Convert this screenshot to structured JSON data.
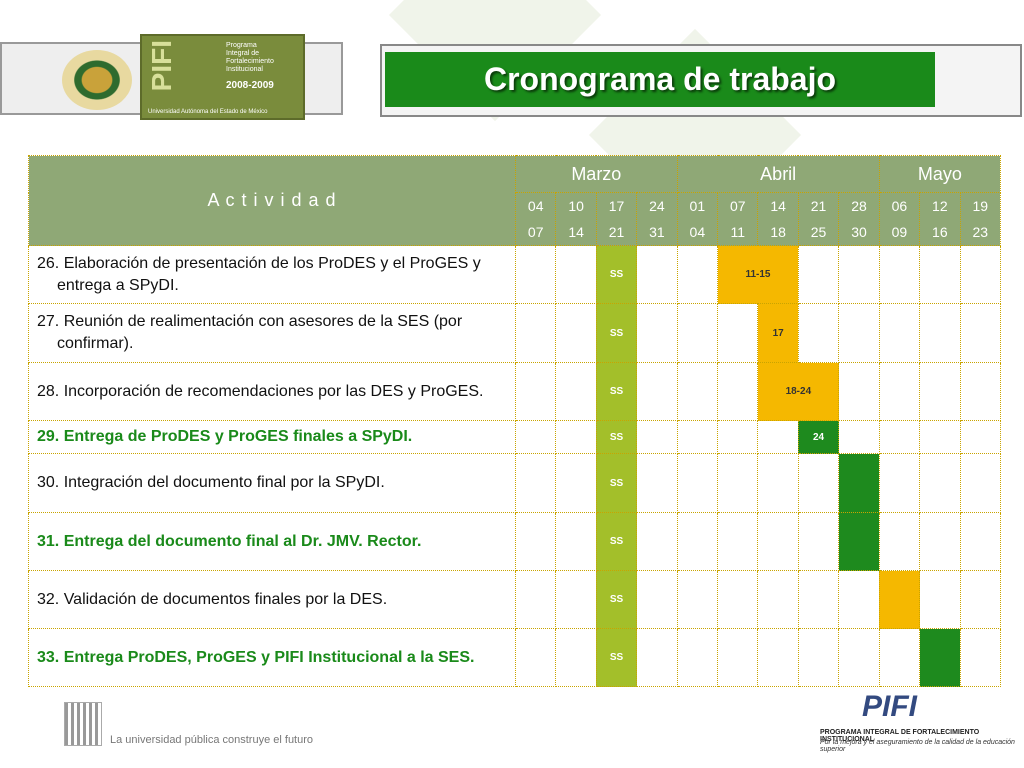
{
  "header": {
    "logo_text": "PIFI",
    "program_lines": [
      "Programa",
      "Integral de",
      "Fortalecimiento",
      "Institucional"
    ],
    "years": "2008-2009",
    "university": "Universidad Autónoma del Estado de México",
    "title": "Cronograma de trabajo"
  },
  "table": {
    "activity_header": "A c t i v i d a d",
    "months": [
      {
        "name": "Marzo",
        "weeks": [
          [
            "04",
            "07"
          ],
          [
            "10",
            "14"
          ],
          [
            "17",
            "21"
          ],
          [
            "24",
            "31"
          ]
        ]
      },
      {
        "name": "Abril",
        "weeks": [
          [
            "01",
            "04"
          ],
          [
            "07",
            "11"
          ],
          [
            "14",
            "18"
          ],
          [
            "21",
            "25"
          ],
          [
            "28",
            "30"
          ]
        ]
      },
      {
        "name": "Mayo",
        "weeks": [
          [
            "06",
            "09"
          ],
          [
            "12",
            "16"
          ],
          [
            "19",
            "23"
          ]
        ]
      }
    ],
    "rows": [
      {
        "activity": "26. Elaboración de presentación de los ProDES y el ProGES y entrega a SPyDI.",
        "highlight": false,
        "cells": [
          null,
          null,
          {
            "fill": "#a3bf2a",
            "label": "SS"
          },
          null,
          null,
          {
            "fill": "#f5b800",
            "label": "11-15",
            "span": 2
          },
          null,
          null,
          null,
          null,
          null
        ]
      },
      {
        "activity": "27. Reunión de realimentación con asesores de la SES (por confirmar).",
        "highlight": false,
        "cells": [
          null,
          null,
          {
            "fill": "#a3bf2a",
            "label": "SS"
          },
          null,
          null,
          null,
          {
            "fill": "#f5b800",
            "label": "17"
          },
          null,
          null,
          null,
          null,
          null
        ]
      },
      {
        "activity": "28. Incorporación de recomendaciones por las DES y ProGES.",
        "highlight": false,
        "cells": [
          null,
          null,
          {
            "fill": "#a3bf2a",
            "label": "SS"
          },
          null,
          null,
          null,
          {
            "fill": "#f5b800",
            "label": "18-24",
            "span": 2
          },
          null,
          null,
          null,
          null
        ]
      },
      {
        "activity": "29. Entrega de ProDES y ProGES finales a SPyDI.",
        "highlight": true,
        "cells": [
          null,
          null,
          {
            "fill": "#a3bf2a",
            "label": "SS"
          },
          null,
          null,
          null,
          null,
          {
            "fill": "#1e8a1e",
            "label": "24"
          },
          null,
          null,
          null,
          null
        ]
      },
      {
        "activity": "30. Integración del documento final por la SPyDI.",
        "highlight": false,
        "cells": [
          null,
          null,
          {
            "fill": "#a3bf2a",
            "label": "SS"
          },
          null,
          null,
          null,
          null,
          null,
          {
            "fill": "#1e8a1e"
          },
          null,
          null,
          null
        ]
      },
      {
        "activity": "31. Entrega del documento final al Dr. JMV. Rector.",
        "highlight": true,
        "cells": [
          null,
          null,
          {
            "fill": "#a3bf2a",
            "label": "SS"
          },
          null,
          null,
          null,
          null,
          null,
          {
            "fill": "#1e8a1e"
          },
          null,
          null,
          null
        ]
      },
      {
        "activity": "32. Validación de documentos finales por la DES.",
        "highlight": false,
        "cells": [
          null,
          null,
          {
            "fill": "#a3bf2a",
            "label": "SS"
          },
          null,
          null,
          null,
          null,
          null,
          null,
          {
            "fill": "#f5b800"
          },
          null,
          null
        ]
      },
      {
        "activity": "33. Entrega ProDES, ProGES y PIFI Institucional  a la SES.",
        "highlight": true,
        "cells": [
          null,
          null,
          {
            "fill": "#a3bf2a",
            "label": "SS"
          },
          null,
          null,
          null,
          null,
          null,
          null,
          null,
          {
            "fill": "#1e8a1e"
          },
          null
        ]
      }
    ]
  },
  "footer": {
    "motto": "La universidad pública construye el futuro",
    "logo_text": "PIFI",
    "program": "PROGRAMA INTEGRAL DE FORTALECIMIENTO INSTITUCIONAL",
    "tagline": "Por la mejora y el aseguramiento de la calidad de la educación superior"
  }
}
